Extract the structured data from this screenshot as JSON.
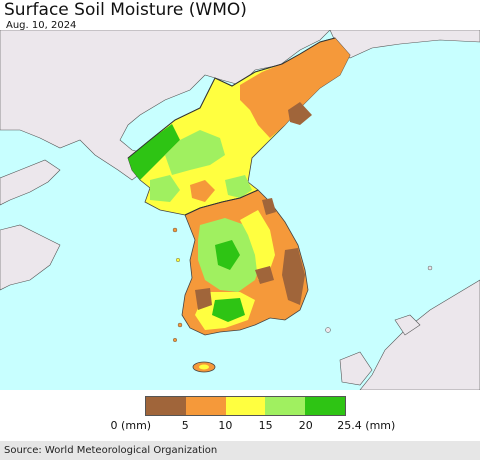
{
  "title": "Surface Soil Moisture (WMO)",
  "date": "Aug. 10, 2024",
  "legend": {
    "colors": [
      "#a0653a",
      "#f5993a",
      "#ffff40",
      "#a0f060",
      "#2ec414"
    ],
    "ticks": [
      "0 (mm)",
      "5",
      "10",
      "15",
      "20",
      "25.4 (mm)"
    ]
  },
  "source": "Source: World Meteorological Organization",
  "colors": {
    "sea": "#c8ffff",
    "land_outside": "#ece7ec",
    "border": "#444444"
  }
}
